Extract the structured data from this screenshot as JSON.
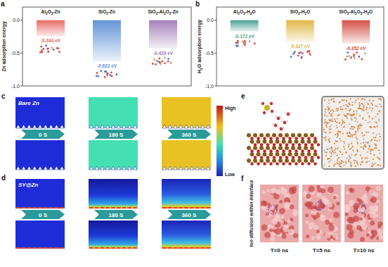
{
  "chart_data": [
    {
      "type": "bar",
      "y_label": "Zn adsorption energy",
      "categories": [
        "Al2O3-Zn",
        "SiO2-Zn",
        "SiO2-Al2O3-Zn"
      ],
      "values": [
        -0.244,
        -0.622,
        -0.428
      ],
      "value_labels": [
        "-0.244 eV",
        "-0.622 eV",
        "-0.428 eV"
      ],
      "colors": [
        "#e8625e",
        "#5b8fd6",
        "#a07ab8"
      ],
      "ylim": [
        -1.0,
        0.2
      ],
      "yticks": [
        {
          "value": 0,
          "label": "0.0"
        },
        {
          "value": -0.5,
          "label": "-0.5"
        },
        {
          "value": -1.0,
          "label": "-1.0"
        }
      ],
      "data_labels": true
    },
    {
      "type": "bar",
      "y_label": "H2O adsorption energy",
      "categories": [
        "Al2O3-H2O",
        "SiO2-H2O",
        "SiO2-Al2O3-H2O"
      ],
      "values": [
        -0.172,
        -0.327,
        -0.352
      ],
      "value_labels": [
        "-0.172 eV",
        "-0.327 eV",
        "-0.352 eV"
      ],
      "colors": [
        "#3f9a8c",
        "#e0b43c",
        "#d2483e"
      ],
      "ylim": [
        -1.0,
        0.2
      ],
      "yticks": [
        {
          "value": 0,
          "label": "0.0"
        },
        {
          "value": -0.5,
          "label": "-0.5"
        },
        {
          "value": -1.0,
          "label": "-1.0"
        }
      ],
      "data_labels": true
    }
  ],
  "figure": {
    "panel_labels": [
      "a",
      "b",
      "c",
      "d",
      "e",
      "f"
    ],
    "panel_c": {
      "label": "Bare Zn",
      "times": [
        "0 S",
        "180 S",
        "360 S"
      ]
    },
    "panel_d": {
      "label": "SY@Zn",
      "times": [
        "0 S",
        "180 S",
        "360 S"
      ]
    },
    "colorbar": {
      "high": "High",
      "low": "Low"
    },
    "panel_f": {
      "label": "Ion diffusion within interface",
      "times": [
        "T=0 ns",
        "T=5 ns",
        "T=10 ns"
      ]
    }
  }
}
